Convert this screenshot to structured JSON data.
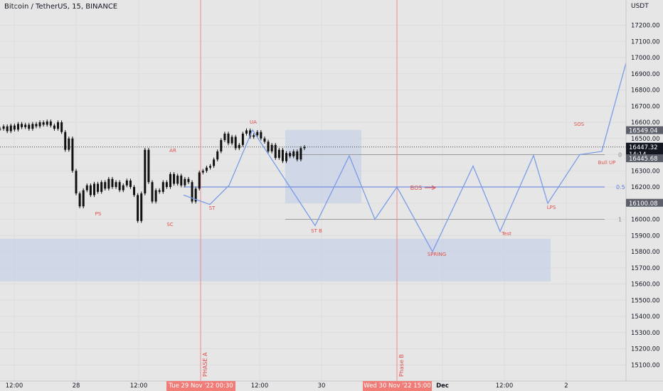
{
  "header": {
    "symbol_title": "Bitcoin / TetherUS, 15, BINANCE",
    "currency": "USDT"
  },
  "colors": {
    "background": "#e6e6e6",
    "candle": "#111111",
    "wave": "#7b9ce8",
    "label_red": "#e2504b",
    "vline": "#ef8a85",
    "box_blue": "#c8d1e6",
    "fib_blue": "#5b7be0",
    "tag_dark": "#131722",
    "tag_gray": "#5d606b",
    "date_tag": "#f07b77"
  },
  "chart_data": {
    "type": "line",
    "title": "Bitcoin / TetherUS, 15, BINANCE",
    "y_axis": {
      "range": [
        15000,
        17300
      ],
      "unit": "USDT",
      "ticks": [
        15100,
        15200,
        15300,
        15400,
        15500,
        15600,
        15700,
        15800,
        15900,
        16000,
        16100,
        16200,
        16300,
        16400,
        16500,
        16600,
        16700,
        16800,
        16900,
        17000,
        17100,
        17200
      ],
      "tick_labels": [
        "15100.00",
        "15200.00",
        "15300.00",
        "15400.00",
        "15500.00",
        "15600.00",
        "15700.00",
        "15800.00",
        "15900.00",
        "16000.00",
        "16100.00",
        "16200.00",
        "16300.00",
        "16400.00",
        "16500.00",
        "16600.00",
        "16700.00",
        "16800.00",
        "16900.00",
        "17000.00",
        "17100.00",
        "17200.00"
      ]
    },
    "x_axis": {
      "tick_labels": [
        "12:00",
        "28",
        "12:00",
        "12:00",
        "30",
        "Dec",
        "12:00",
        "2"
      ]
    },
    "price_series": [
      16560,
      16575,
      16545,
      16580,
      16555,
      16590,
      16570,
      16585,
      16560,
      16590,
      16575,
      16600,
      16585,
      16605,
      16580,
      16560,
      16600,
      16540,
      16430,
      16500,
      16300,
      16160,
      16080,
      16180,
      16210,
      16150,
      16220,
      16170,
      16230,
      16190,
      16250,
      16200,
      16230,
      16180,
      16210,
      16240,
      16200,
      16150,
      15990,
      16160,
      16430,
      16230,
      16110,
      16180,
      16170,
      16230,
      16200,
      16280,
      16220,
      16270,
      16210,
      16250,
      16230,
      16110,
      16190,
      16290,
      16300,
      16320,
      16330,
      16370,
      16420,
      16490,
      16530,
      16470,
      16510,
      16440,
      16460,
      16530,
      16550,
      16510,
      16520,
      16540,
      16500,
      16480,
      16420,
      16460,
      16380,
      16430,
      16360,
      16410,
      16390,
      16420,
      16370,
      16440,
      16447
    ],
    "series": [
      {
        "name": "",
        "values": [
          16150,
          16128,
          16092,
          16175,
          16210,
          16553,
          16405,
          15961,
          16393,
          16000,
          16200,
          15800,
          16330,
          15925,
          16395,
          16099,
          16400,
          16553,
          16420,
          16967
        ]
      }
    ],
    "horizontal_levels": [
      {
        "value": 16447.32,
        "style": "dotted-dark"
      },
      {
        "value": 16400,
        "label": "0",
        "style": "solid-gray"
      },
      {
        "value": 16200,
        "label": "0.5",
        "style": "solid-blue"
      },
      {
        "value": 16000,
        "label": "1",
        "style": "solid-gray"
      }
    ],
    "zones": [
      {
        "name": "range-box",
        "y_low": 16100,
        "y_high": 16553
      },
      {
        "name": "demand-zone",
        "y_low": 15617,
        "y_high": 15880
      }
    ],
    "annotations": [
      "UA",
      "AR",
      "PS",
      "SC",
      "ST",
      "ST B",
      "SPRING",
      "Test",
      "LPS",
      "SOS",
      "Bull UP",
      "BOS",
      "PHASE A",
      "Phase B"
    ],
    "price_tags": [
      {
        "text": "16549.04",
        "value": 16549.04,
        "kind": "gray"
      },
      {
        "text": "16447.32",
        "value": 16447.32,
        "kind": "dark",
        "sub": "14:14"
      },
      {
        "text": "16445.68",
        "value": 16445.68,
        "kind": "gray"
      },
      {
        "text": "16100.08",
        "value": 16100.08,
        "kind": "gray"
      }
    ],
    "date_tags": [
      "Tue 29 Nov '22   00:30",
      "Wed 30 Nov '22   15:00"
    ]
  }
}
